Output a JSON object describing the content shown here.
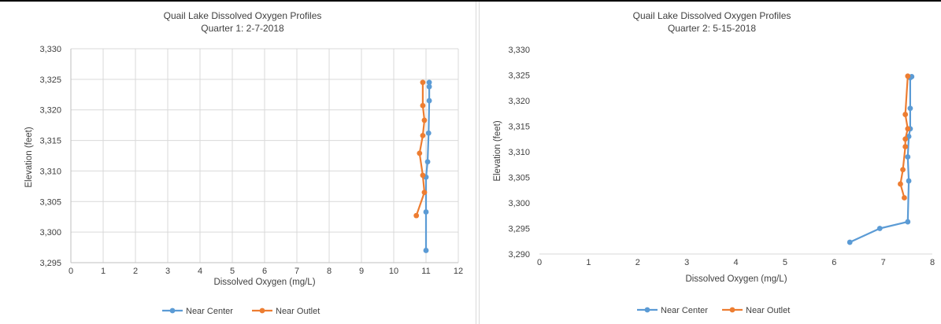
{
  "chart_data": [
    {
      "type": "line",
      "title": "Quail Lake Dissolved Oxygen Profiles",
      "subtitle": "Quarter 1: 2-7-2018",
      "xlabel": "Dissolved Oxygen (mg/L)",
      "ylabel": "Elevation (feet)",
      "xlim": [
        0,
        12
      ],
      "ylim": [
        3295,
        3330
      ],
      "xticks": [
        "0",
        "1",
        "2",
        "3",
        "4",
        "5",
        "6",
        "7",
        "8",
        "9",
        "10",
        "11",
        "12"
      ],
      "yticks": [
        "3,295",
        "3,300",
        "3,305",
        "3,310",
        "3,315",
        "3,320",
        "3,325",
        "3,330"
      ],
      "grid": true,
      "legend_position": "bottom",
      "series": [
        {
          "name": "Near Center",
          "color": "#5b9bd5",
          "x": [
            11.0,
            11.0,
            11.0,
            11.05,
            11.08,
            11.1,
            11.1,
            11.1
          ],
          "y": [
            3297.0,
            3303.3,
            3309.0,
            3311.5,
            3316.2,
            3321.5,
            3323.8,
            3324.5
          ]
        },
        {
          "name": "Near Outlet",
          "color": "#ed7d31",
          "x": [
            10.7,
            10.95,
            10.9,
            10.8,
            10.9,
            10.95,
            10.9,
            10.9
          ],
          "y": [
            3302.7,
            3306.5,
            3309.3,
            3312.9,
            3315.8,
            3318.3,
            3320.7,
            3324.5
          ]
        }
      ]
    },
    {
      "type": "line",
      "title": "Quail Lake Dissolved Oxygen Profiles",
      "subtitle": "Quarter 2: 5-15-2018",
      "xlabel": "Dissolved Oxygen (mg/L)",
      "ylabel": "Elevation (feet)",
      "xlim": [
        0,
        8
      ],
      "ylim": [
        3290,
        3330
      ],
      "xticks": [
        "0",
        "1",
        "2",
        "3",
        "4",
        "5",
        "6",
        "7",
        "8"
      ],
      "yticks": [
        "3,290",
        "3,295",
        "3,300",
        "3,305",
        "3,310",
        "3,315",
        "3,320",
        "3,325",
        "3,330"
      ],
      "grid": false,
      "legend_position": "bottom",
      "series": [
        {
          "name": "Near Center",
          "color": "#5b9bd5",
          "x": [
            6.32,
            6.93,
            7.5,
            7.52,
            7.5,
            7.52,
            7.55,
            7.55,
            7.55,
            7.58
          ],
          "y": [
            3292.3,
            3295.0,
            3296.3,
            3304.3,
            3309.0,
            3313.0,
            3314.5,
            3318.5,
            3324.5,
            3324.7
          ]
        },
        {
          "name": "Near Outlet",
          "color": "#ed7d31",
          "x": [
            7.43,
            7.35,
            7.4,
            7.45,
            7.45,
            7.5,
            7.45,
            7.5
          ],
          "y": [
            3301.0,
            3303.7,
            3306.5,
            3311.0,
            3312.5,
            3314.5,
            3317.3,
            3324.8
          ]
        }
      ]
    }
  ]
}
